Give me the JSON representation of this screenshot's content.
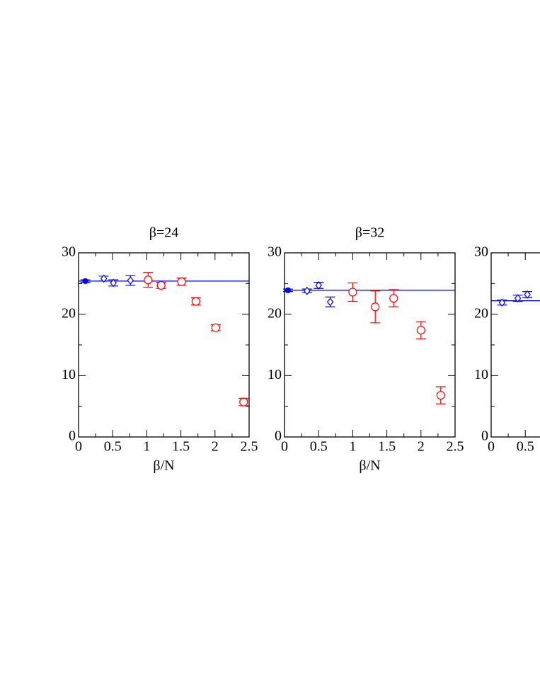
{
  "chart_data": [
    {
      "type": "scatter",
      "title": "β=24",
      "xlabel": "β/N",
      "xlim": [
        0,
        2.5
      ],
      "ylim": [
        0,
        30
      ],
      "xticks": [
        0,
        0.5,
        1,
        1.5,
        2,
        2.5
      ],
      "yticks": [
        0,
        10,
        20,
        30
      ],
      "xminor": [
        0.25,
        0.75,
        1.25,
        1.75,
        2.25
      ],
      "yminor": [
        5,
        15,
        25
      ],
      "series": [
        {
          "marker": "line",
          "color": "#0000ff",
          "x": [
            0,
            2.5
          ],
          "values": [
            25.4,
            25.4
          ]
        },
        {
          "marker": "filled-circle",
          "color": "#0000ff",
          "x": [
            0.1
          ],
          "values": [
            25.4
          ],
          "errors": [
            0.2
          ]
        },
        {
          "marker": "diamond",
          "color": "#0000ff",
          "x": [
            0.37,
            0.51,
            0.76
          ],
          "values": [
            25.8,
            25.1,
            25.5
          ],
          "errors": [
            0.4,
            0.5,
            0.8
          ]
        },
        {
          "marker": "circle",
          "color": "#ff0000",
          "x": [
            1.02,
            1.21,
            1.51,
            1.72,
            2.01,
            2.42
          ],
          "values": [
            25.6,
            24.7,
            25.3,
            22.1,
            17.8,
            5.7
          ],
          "errors": [
            1.2,
            0.5,
            0.6,
            0.6,
            0.5,
            0.6
          ]
        }
      ]
    },
    {
      "type": "scatter",
      "title": "β=32",
      "xlabel": "β/N",
      "xlim": [
        0,
        2.5
      ],
      "ylim": [
        0,
        30
      ],
      "xticks": [
        0,
        0.5,
        1,
        1.5,
        2,
        2.5
      ],
      "yticks": [
        0,
        10,
        20,
        30
      ],
      "xminor": [
        0.25,
        0.75,
        1.25,
        1.75,
        2.25
      ],
      "yminor": [
        5,
        15,
        25
      ],
      "series": [
        {
          "marker": "line",
          "color": "#0000ff",
          "x": [
            0,
            2.5
          ],
          "values": [
            23.9,
            23.9
          ]
        },
        {
          "marker": "filled-circle",
          "color": "#0000ff",
          "x": [
            0.05
          ],
          "values": [
            23.9
          ],
          "errors": [
            0.2
          ]
        },
        {
          "marker": "diamond",
          "color": "#0000ff",
          "x": [
            0.33,
            0.5,
            0.67
          ],
          "values": [
            23.8,
            24.7,
            22.0
          ],
          "errors": [
            0.3,
            0.5,
            0.8
          ]
        },
        {
          "marker": "circle",
          "color": "#ff0000",
          "x": [
            1.0,
            1.33,
            1.6,
            2.0,
            2.29
          ],
          "values": [
            23.6,
            21.2,
            22.6,
            17.4,
            6.8
          ],
          "errors": [
            1.5,
            2.6,
            1.4,
            1.4,
            1.4
          ]
        }
      ]
    },
    {
      "type": "scatter",
      "xlim": [
        0,
        2.5
      ],
      "ylim": [
        0,
        30
      ],
      "xticks": [
        0,
        0.5
      ],
      "yticks": [
        0,
        10,
        20,
        30
      ],
      "xminor": [
        0.25
      ],
      "yminor": [
        5,
        15,
        25
      ],
      "series": [
        {
          "marker": "line",
          "color": "#0000ff",
          "x": [
            0,
            2.5
          ],
          "values": [
            22.2,
            22.2
          ]
        },
        {
          "marker": "diamond",
          "color": "#0000ff",
          "x": [
            0.16,
            0.39,
            0.53
          ],
          "values": [
            21.9,
            22.6,
            23.2
          ],
          "errors": [
            0.4,
            0.5,
            0.5
          ]
        }
      ]
    }
  ]
}
